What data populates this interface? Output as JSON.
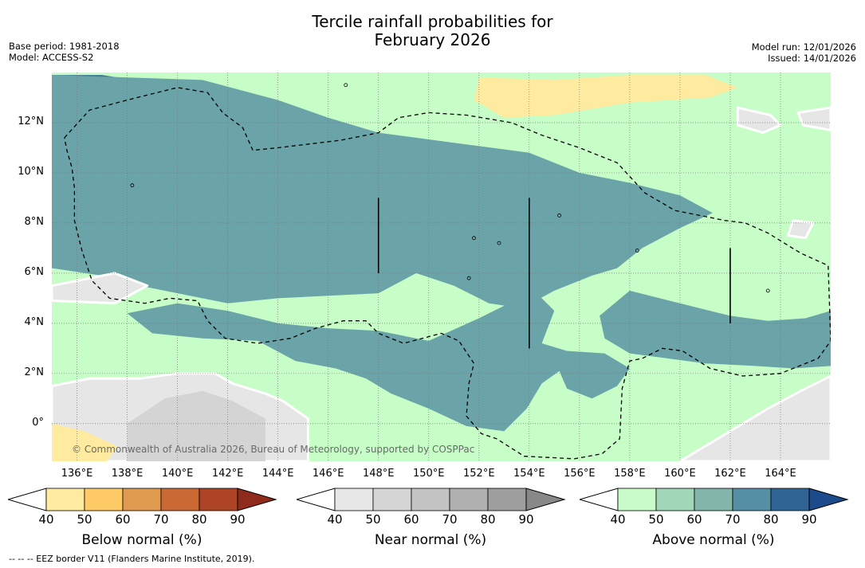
{
  "title_line1": "Tercile rainfall probabilities for",
  "title_line2": "February 2026",
  "base_period": "Base period: 1981-2018",
  "model": "Model: ACCESS-S2",
  "model_run": "Model run: 12/01/2026",
  "issued": "Issued: 14/01/2026",
  "copyright": "© Commonwealth of Australia 2026, Bureau of Meteorology, supported by COSPPac",
  "footnote": "-- -- -- EEZ border V11 (Flanders Marine Institute, 2019).",
  "chart_data": {
    "type": "heatmap",
    "xlim": [
      135.0,
      166.0
    ],
    "ylim": [
      -1.5,
      14.0
    ],
    "xticks": [
      {
        "v": 136,
        "label": "136°E"
      },
      {
        "v": 138,
        "label": "138°E"
      },
      {
        "v": 140,
        "label": "140°E"
      },
      {
        "v": 142,
        "label": "142°E"
      },
      {
        "v": 144,
        "label": "144°E"
      },
      {
        "v": 146,
        "label": "146°E"
      },
      {
        "v": 148,
        "label": "148°E"
      },
      {
        "v": 150,
        "label": "150°E"
      },
      {
        "v": 152,
        "label": "152°E"
      },
      {
        "v": 154,
        "label": "154°E"
      },
      {
        "v": 156,
        "label": "156°E"
      },
      {
        "v": 158,
        "label": "158°E"
      },
      {
        "v": 160,
        "label": "160°E"
      },
      {
        "v": 162,
        "label": "162°E"
      },
      {
        "v": 164,
        "label": "164°E"
      }
    ],
    "yticks": [
      {
        "v": 0,
        "label": "0°"
      },
      {
        "v": 2,
        "label": "2°N"
      },
      {
        "v": 4,
        "label": "4°N"
      },
      {
        "v": 6,
        "label": "6°N"
      },
      {
        "v": 8,
        "label": "8°N"
      },
      {
        "v": 10,
        "label": "10°N"
      },
      {
        "v": 12,
        "label": "12°N"
      }
    ],
    "regions": [
      {
        "category": "above",
        "level": 80,
        "lonlat": [
          [
            135,
            13.9
          ],
          [
            137,
            13.9
          ],
          [
            139.5,
            13.5
          ],
          [
            140.5,
            13.2
          ],
          [
            139.5,
            12.3
          ],
          [
            138,
            11.8
          ],
          [
            137,
            11.2
          ],
          [
            136,
            11
          ],
          [
            135,
            11.3
          ]
        ]
      },
      {
        "category": "above",
        "level": 80,
        "lonlat": [
          [
            135,
            9.5
          ],
          [
            137,
            9.6
          ],
          [
            139,
            9.4
          ],
          [
            140.5,
            9
          ],
          [
            141.5,
            8.8
          ],
          [
            143,
            8.9
          ],
          [
            145,
            8.4
          ],
          [
            146.5,
            8.1
          ],
          [
            147.5,
            7.7
          ],
          [
            147,
            7
          ],
          [
            145,
            7
          ],
          [
            143,
            7.1
          ],
          [
            141,
            7.4
          ],
          [
            139,
            7.6
          ],
          [
            137,
            7.2
          ],
          [
            135,
            7.4
          ]
        ]
      },
      {
        "category": "above",
        "level": 80,
        "lonlat": [
          [
            151,
            2.3
          ],
          [
            152.5,
            2.7
          ],
          [
            153.5,
            2.4
          ],
          [
            153.5,
            1.5
          ],
          [
            152.5,
            1.2
          ],
          [
            151.5,
            1.3
          ],
          [
            150.8,
            1.8
          ]
        ]
      },
      {
        "category": "above",
        "level": 70,
        "lonlat": [
          [
            135,
            13.9
          ],
          [
            141,
            13.7
          ],
          [
            144,
            12.9
          ],
          [
            146,
            12.2
          ],
          [
            148,
            11.6
          ],
          [
            151,
            11.2
          ],
          [
            154,
            10.8
          ],
          [
            156,
            10
          ],
          [
            158,
            9.6
          ],
          [
            160,
            9.1
          ],
          [
            161.3,
            8.4
          ],
          [
            160,
            7.8
          ],
          [
            158.5,
            7
          ],
          [
            157.5,
            6.2
          ],
          [
            156.5,
            5.9
          ],
          [
            155,
            5.3
          ],
          [
            153.7,
            4.6
          ],
          [
            152.4,
            4.8
          ],
          [
            151,
            5.5
          ],
          [
            149.5,
            6
          ],
          [
            148,
            5.2
          ],
          [
            146,
            5.1
          ],
          [
            144,
            5
          ],
          [
            142,
            4.8
          ],
          [
            140,
            5.2
          ],
          [
            138.5,
            5.5
          ],
          [
            137,
            5.9
          ],
          [
            135,
            6.2
          ]
        ]
      },
      {
        "category": "above",
        "level": 70,
        "lonlat": [
          [
            138,
            4.4
          ],
          [
            140,
            4.8
          ],
          [
            142,
            4.5
          ],
          [
            144,
            4
          ],
          [
            146,
            3.8
          ],
          [
            148,
            3.7
          ],
          [
            150,
            3.3
          ],
          [
            152,
            4.2
          ],
          [
            153.4,
            4.9
          ],
          [
            154.3,
            5.2
          ],
          [
            155,
            4.5
          ],
          [
            154.5,
            3.2
          ],
          [
            155.5,
            2.9
          ],
          [
            157,
            2.8
          ],
          [
            158,
            2.2
          ],
          [
            157.5,
            1.5
          ],
          [
            156.5,
            1
          ],
          [
            155.5,
            1.4
          ],
          [
            155.2,
            2.1
          ],
          [
            154.5,
            1.6
          ],
          [
            153.9,
            0.6
          ],
          [
            153,
            -0.3
          ],
          [
            151.5,
            -0.1
          ],
          [
            150,
            0.6
          ],
          [
            148.5,
            1.2
          ],
          [
            147.5,
            1.8
          ],
          [
            146.3,
            2.2
          ],
          [
            144.7,
            2.5
          ],
          [
            143.2,
            3.3
          ],
          [
            141,
            3.4
          ],
          [
            139,
            3.6
          ]
        ]
      },
      {
        "category": "above",
        "level": 70,
        "lonlat": [
          [
            158,
            5.3
          ],
          [
            160,
            4.8
          ],
          [
            162,
            4.3
          ],
          [
            163.5,
            4.1
          ],
          [
            165,
            4.2
          ],
          [
            166,
            4.5
          ],
          [
            166,
            2.3
          ],
          [
            164.5,
            2.2
          ],
          [
            163,
            2.3
          ],
          [
            161,
            2.4
          ],
          [
            159.5,
            2.6
          ],
          [
            158,
            2.8
          ],
          [
            157,
            3.4
          ],
          [
            156.8,
            4.3
          ]
        ]
      },
      {
        "category": "normal",
        "level": 40,
        "lonlat": [
          [
            135,
            -1.5
          ],
          [
            135,
            1.5
          ],
          [
            136.5,
            1.8
          ],
          [
            138.5,
            1.8
          ],
          [
            140,
            2
          ],
          [
            141.5,
            2
          ],
          [
            142.2,
            1.6
          ],
          [
            143.5,
            1.2
          ],
          [
            144.2,
            0.9
          ],
          [
            145.2,
            0.2
          ],
          [
            145.2,
            -1.5
          ]
        ]
      },
      {
        "category": "normal",
        "level": 50,
        "lonlat": [
          [
            138,
            -1.5
          ],
          [
            138,
            0
          ],
          [
            139.5,
            1
          ],
          [
            141,
            1.3
          ],
          [
            142.2,
            0.9
          ],
          [
            143.5,
            0.2
          ],
          [
            143.5,
            -1.5
          ]
        ]
      },
      {
        "category": "normal",
        "level": 40,
        "lonlat": [
          [
            135,
            5.5
          ],
          [
            137.5,
            6
          ],
          [
            138.8,
            5.5
          ],
          [
            137.5,
            4.8
          ],
          [
            135,
            4.9
          ]
        ]
      },
      {
        "category": "normal",
        "level": 40,
        "lonlat": [
          [
            160,
            -1.5
          ],
          [
            162,
            -0.3
          ],
          [
            163.5,
            0.6
          ],
          [
            164.8,
            1.3
          ],
          [
            166,
            1.9
          ],
          [
            166,
            -1.5
          ]
        ]
      },
      {
        "category": "normal",
        "level": 40,
        "lonlat": [
          [
            162.3,
            12.6
          ],
          [
            163.6,
            12.3
          ],
          [
            164,
            11.9
          ],
          [
            163.3,
            11.6
          ],
          [
            162.3,
            11.9
          ]
        ]
      },
      {
        "category": "normal",
        "level": 40,
        "lonlat": [
          [
            164.7,
            12.4
          ],
          [
            166,
            12.6
          ],
          [
            166,
            11.7
          ],
          [
            164.9,
            11.9
          ]
        ]
      },
      {
        "category": "normal",
        "level": 40,
        "lonlat": [
          [
            164.5,
            8.1
          ],
          [
            165.3,
            8
          ],
          [
            165,
            7.4
          ],
          [
            164.3,
            7.5
          ]
        ]
      },
      {
        "category": "below",
        "level": 50,
        "lonlat": [
          [
            152,
            13.8
          ],
          [
            155,
            13.7
          ],
          [
            158,
            13.9
          ],
          [
            161,
            13.9
          ],
          [
            162.3,
            13.4
          ],
          [
            161.2,
            13
          ],
          [
            158,
            12.8
          ],
          [
            155,
            12.3
          ],
          [
            153,
            12.2
          ],
          [
            151.8,
            12.9
          ]
        ]
      },
      {
        "category": "below",
        "level": 50,
        "lonlat": [
          [
            135,
            -1.5
          ],
          [
            135,
            0
          ],
          [
            136.3,
            -0.3
          ],
          [
            137.6,
            -0.9
          ],
          [
            137.2,
            -1.5
          ]
        ]
      }
    ],
    "eez_border": [
      [
        [
          135.5,
          11.4
        ],
        [
          136.5,
          12.5
        ],
        [
          138,
          12.9
        ],
        [
          140,
          13.4
        ],
        [
          141.2,
          13.2
        ],
        [
          141.8,
          12.4
        ],
        [
          142.6,
          11.8
        ],
        [
          143,
          10.9
        ],
        [
          144,
          11
        ],
        [
          146.5,
          11.3
        ],
        [
          148,
          11.6
        ],
        [
          148.8,
          12.2
        ],
        [
          150,
          12.4
        ],
        [
          151.5,
          12.3
        ],
        [
          153.3,
          12
        ],
        [
          154.5,
          11.5
        ],
        [
          156,
          11
        ],
        [
          157.5,
          10.4
        ],
        [
          158.6,
          9.2
        ],
        [
          159.8,
          8.5
        ],
        [
          161.8,
          8.1
        ],
        [
          162.6,
          8
        ],
        [
          163.5,
          7.6
        ],
        [
          164.8,
          6.8
        ],
        [
          165.9,
          6.3
        ],
        [
          166,
          3.3
        ],
        [
          165.5,
          2.6
        ],
        [
          164,
          2
        ],
        [
          162.5,
          1.9
        ],
        [
          161.2,
          2.2
        ],
        [
          160.1,
          2.9
        ],
        [
          159.3,
          3
        ],
        [
          158.5,
          2.6
        ],
        [
          158,
          2.5
        ],
        [
          157.7,
          1.4
        ],
        [
          157.6,
          -0.6
        ],
        [
          156.9,
          -1.2
        ],
        [
          155.8,
          -1.4
        ],
        [
          153.8,
          -1.3
        ],
        [
          152.7,
          -0.6
        ],
        [
          152.1,
          -0.4
        ],
        [
          151.5,
          0.3
        ],
        [
          151.6,
          1.6
        ],
        [
          151.8,
          2.4
        ],
        [
          151.2,
          3.3
        ],
        [
          150.5,
          3.6
        ],
        [
          149,
          3.2
        ],
        [
          148,
          3.6
        ],
        [
          147.5,
          4.1
        ],
        [
          146.6,
          4.1
        ],
        [
          145.5,
          3.8
        ],
        [
          144.5,
          3.4
        ],
        [
          143.2,
          3.2
        ],
        [
          141.9,
          3.4
        ],
        [
          141.2,
          4.1
        ],
        [
          140.8,
          4.9
        ],
        [
          139.7,
          5
        ],
        [
          138.7,
          4.8
        ],
        [
          137.3,
          5
        ],
        [
          136.6,
          5.7
        ],
        [
          136.2,
          6.9
        ],
        [
          135.9,
          8.1
        ],
        [
          135.9,
          9.4
        ],
        [
          135.8,
          10.2
        ],
        [
          135.6,
          10.9
        ],
        [
          135.5,
          11.4
        ]
      ]
    ],
    "islands": [
      [
        146.7,
        13.5
      ],
      [
        138.2,
        9.5
      ],
      [
        155.2,
        8.3
      ],
      [
        151.8,
        7.4
      ],
      [
        152.8,
        7.2
      ],
      [
        158.3,
        6.9
      ],
      [
        163.5,
        5.3
      ],
      [
        151.6,
        5.8
      ]
    ],
    "verticals": [
      {
        "lon": 148,
        "lat_min": 6.0,
        "lat_max": 9.0
      },
      {
        "lon": 154,
        "lat_min": 3.0,
        "lat_max": 9.0
      },
      {
        "lon": 162,
        "lat_min": 4.0,
        "lat_max": 7.0
      }
    ],
    "colorbars": [
      {
        "label": "Below normal (%)",
        "colors": [
          "#ffeba0",
          "#fecb67",
          "#e09a50",
          "#cb6935",
          "#ae4426",
          "#8f2b1c"
        ],
        "ticks": [
          "40",
          "50",
          "60",
          "70",
          "80",
          "90"
        ]
      },
      {
        "label": "Near normal (%)",
        "colors": [
          "#e7e7e7",
          "#d5d5d5",
          "#c3c3c3",
          "#b0b0b0",
          "#9e9e9e",
          "#888888"
        ],
        "ticks": [
          "40",
          "50",
          "60",
          "70",
          "80",
          "90"
        ]
      },
      {
        "label": "Above normal (%)",
        "colors": [
          "#c8fbc7",
          "#a1d7b8",
          "#84b5aa",
          "#548fa6",
          "#2e6393",
          "#1b4b8a"
        ],
        "ticks": [
          "40",
          "50",
          "60",
          "70",
          "80",
          "90"
        ]
      }
    ],
    "colors": {
      "below": {
        "40": "#ffeba0",
        "50": "#ffeba0",
        "60": "#fecb67"
      },
      "normal": {
        "40": "#e6e6e6",
        "50": "#d4d4d4",
        "60": "#c3c3c3"
      },
      "above": {
        "40": "#c7fdc7",
        "50": "#9ed1b7",
        "60": "#84b5aa",
        "70": "#6aa4a8",
        "80": "#3f7698"
      }
    }
  }
}
